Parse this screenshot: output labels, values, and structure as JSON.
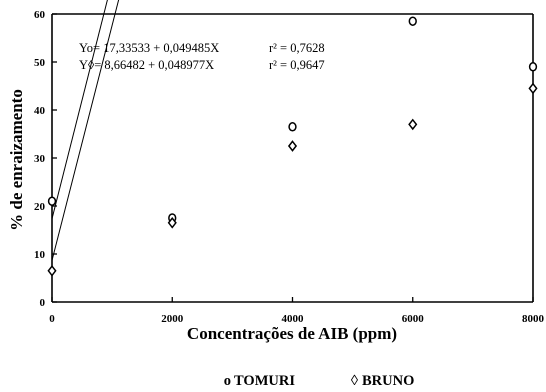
{
  "chart_data": {
    "type": "scatter",
    "xlabel": "Concentrações de AIB (ppm)",
    "ylabel": "% de enraizamento",
    "xlim": [
      0,
      8000
    ],
    "ylim": [
      0,
      60
    ],
    "x_ticks": [
      "0",
      "2000",
      "4000",
      "6000",
      "8000"
    ],
    "y_ticks": [
      "0",
      "10",
      "20",
      "30",
      "40",
      "50",
      "60"
    ],
    "grid": false,
    "legend_position": "bottom",
    "series": [
      {
        "name": "TOMURI",
        "legend_symbol": "o",
        "marker": "circle",
        "x": [
          0,
          2000,
          4000,
          6000,
          8000
        ],
        "y": [
          21,
          17.5,
          36.5,
          58.5,
          49
        ],
        "regression": {
          "intercept": 17.33533,
          "slope": 0.049485
        }
      },
      {
        "name": "BRUNO",
        "legend_symbol": "◊",
        "marker": "diamond",
        "x": [
          0,
          2000,
          4000,
          6000,
          8000
        ],
        "y": [
          6.5,
          16.5,
          32.5,
          37,
          44.5
        ],
        "regression": {
          "intercept": 8.66482,
          "slope": 0.048977
        }
      }
    ],
    "annotations": {
      "eq1": "Yo= 17,33533 + 0,049485X",
      "r1": "r² = 0,7628",
      "eq2": "Y◊=  8,66482 + 0,048977X",
      "r2": "r² = 0,9647"
    }
  }
}
